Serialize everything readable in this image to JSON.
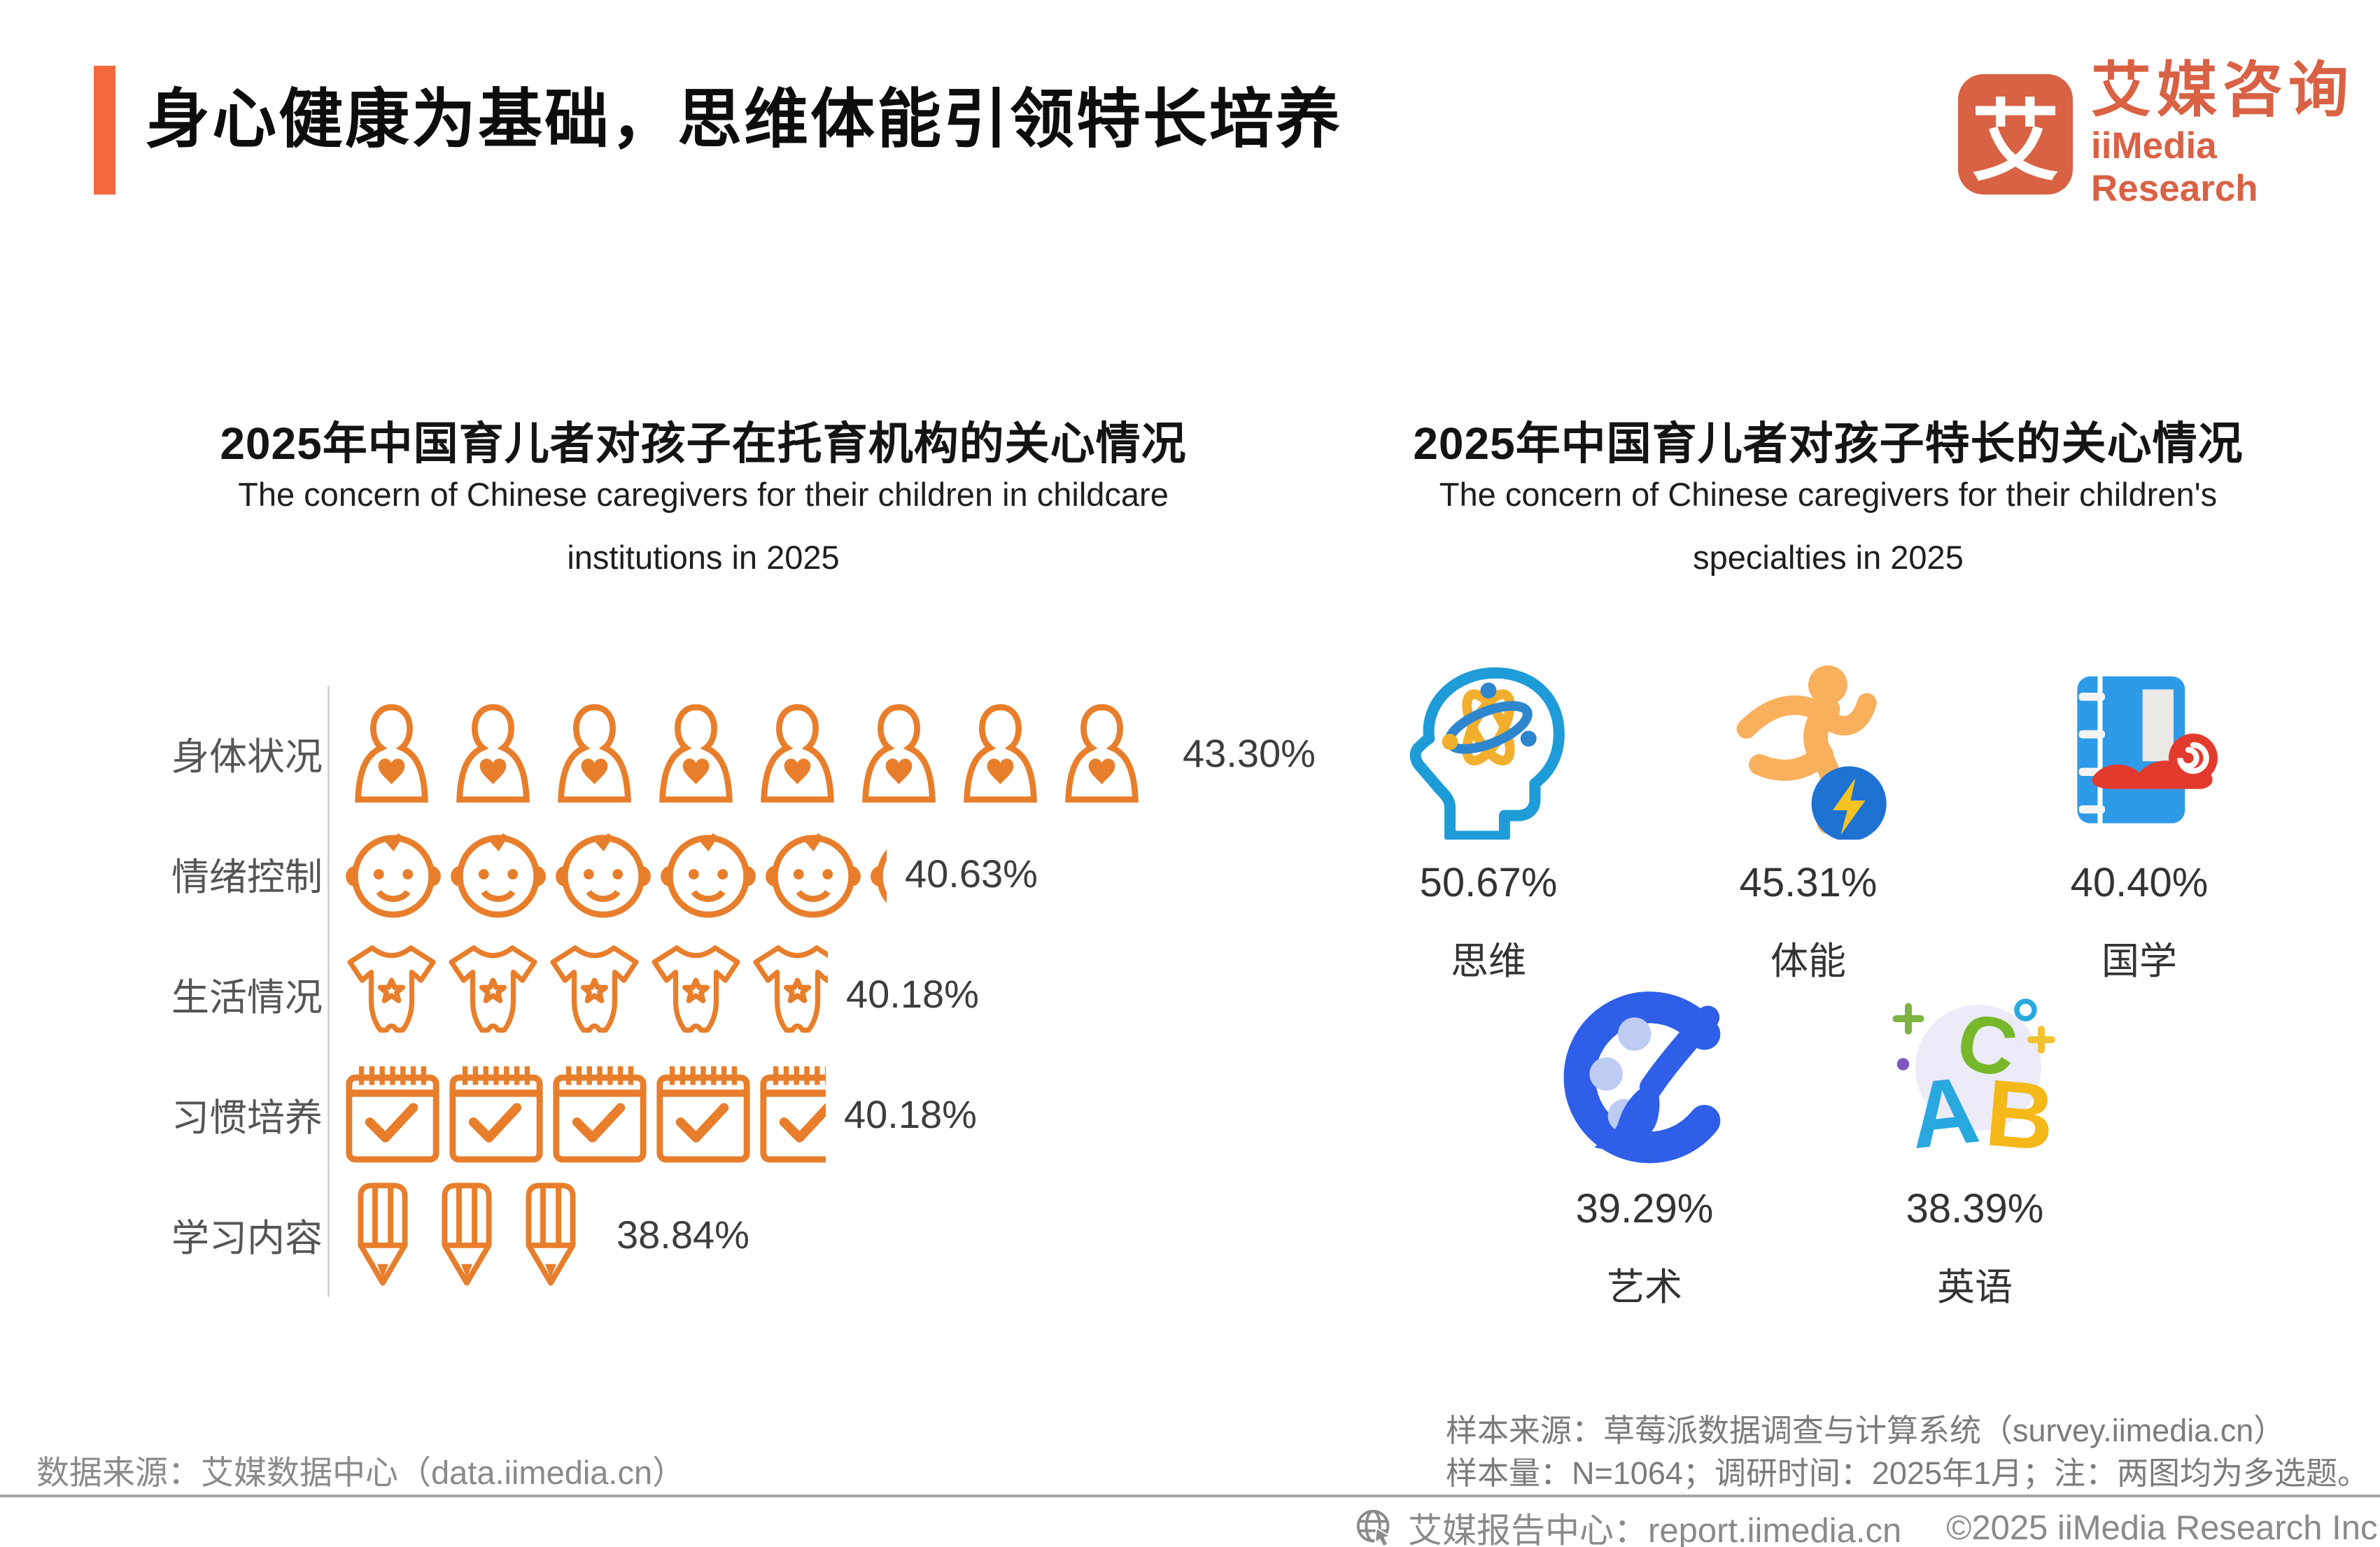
{
  "header": {
    "title": "身心健康为基础，思维体能引领特长培养",
    "accent_color": "#F4683C"
  },
  "logo": {
    "mark": "艾",
    "name_cn": "艾媒咨询",
    "name_en": "iiMedia Research"
  },
  "left_chart": {
    "title_cn": "2025年中国育儿者对孩子在托育机构的关心情况",
    "title_en_line1": "The concern of Chinese caregivers for their children in childcare",
    "title_en_line2": "institutions in 2025",
    "rows": [
      {
        "label": "身体状况",
        "value": "43.30%",
        "icon": "person-heart-icon",
        "icons": 8.12
      },
      {
        "label": "情绪控制",
        "value": "40.63%",
        "icon": "baby-face-icon",
        "icons": 5.2
      },
      {
        "label": "生活情况",
        "value": "40.18%",
        "icon": "baby-onesie-icon",
        "icons": 4.8
      },
      {
        "label": "习惯培养",
        "value": "40.18%",
        "icon": "calendar-check-icon",
        "icons": 4.68
      },
      {
        "label": "学习内容",
        "value": "38.84%",
        "icon": "pencil-icon",
        "icons": 3.07
      }
    ]
  },
  "right_chart": {
    "title_cn": "2025年中国育儿者对孩子特长的关心情况",
    "title_en_line1": "The concern of Chinese caregivers for their children's",
    "title_en_line2": "specialties in 2025",
    "items": [
      {
        "label": "思维",
        "value": "50.67%",
        "icon": "mind-atom-icon"
      },
      {
        "label": "体能",
        "value": "45.31%",
        "icon": "running-energy-icon"
      },
      {
        "label": "国学",
        "value": "40.40%",
        "icon": "classics-book-icon"
      },
      {
        "label": "艺术",
        "value": "39.29%",
        "icon": "art-palette-icon"
      },
      {
        "label": "英语",
        "value": "38.39%",
        "icon": "english-abc-icon"
      }
    ],
    "abc_letters": {
      "a": "A",
      "b": "B",
      "c": "C"
    }
  },
  "sources": {
    "left": "数据来源：艾媒数据中心（data.iimedia.cn）",
    "right_line1": "样本来源：草莓派数据调查与计算系统（survey.iimedia.cn）",
    "right_line2": "样本量：N=1064；调研时间：2025年1月；注：两图均为多选题。"
  },
  "footer": {
    "report_center": "艾媒报告中心：report.iimedia.cn",
    "copyright": "©2025  iiMedia Research  Inc"
  },
  "chart_data": [
    {
      "type": "bar",
      "style": "pictogram",
      "orientation": "horizontal",
      "title": "2025年中国育儿者对孩子在托育机构的关心情况",
      "subtitle": "The concern of Chinese caregivers for their children in childcare institutions in 2025",
      "categories": [
        "身体状况",
        "情绪控制",
        "生活情况",
        "习惯培养",
        "学习内容"
      ],
      "values": [
        43.3,
        40.63,
        40.18,
        40.18,
        38.84
      ],
      "unit": "%",
      "icon_color": "#E87E2B",
      "icons": [
        "person-heart",
        "baby-face",
        "baby-onesie",
        "calendar-check",
        "pencil"
      ]
    },
    {
      "type": "bar",
      "style": "icon-stats",
      "title": "2025年中国育儿者对孩子特长的关心情况",
      "subtitle": "The concern of Chinese caregivers for their children's specialties in 2025",
      "categories": [
        "思维",
        "体能",
        "国学",
        "艺术",
        "英语"
      ],
      "values": [
        50.67,
        45.31,
        40.4,
        39.29,
        38.39
      ],
      "unit": "%"
    }
  ]
}
